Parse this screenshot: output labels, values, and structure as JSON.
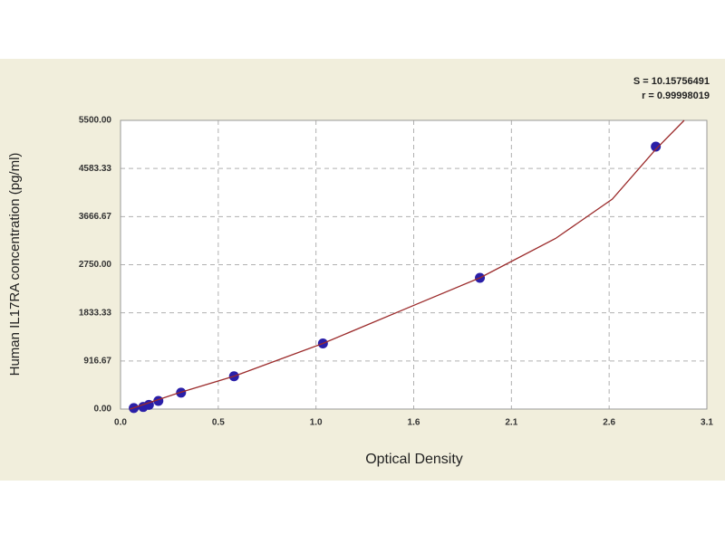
{
  "chart_data": {
    "type": "scatter",
    "x_label": "Optical Density",
    "y_label": "Human IL17RA concentration (pg/ml)",
    "annotations": [
      "S = 10.15756491",
      "r = 0.99998019"
    ],
    "xlim": [
      0,
      3.1
    ],
    "xticks": [
      {
        "value": 0,
        "label": "0.0"
      },
      {
        "value": 0.5167,
        "label": "0.5"
      },
      {
        "value": 1.0333,
        "label": "1.0"
      },
      {
        "value": 1.55,
        "label": "1.6"
      },
      {
        "value": 2.0667,
        "label": "2.1"
      },
      {
        "value": 2.5833,
        "label": "2.6"
      },
      {
        "value": 3.1,
        "label": "3.1"
      }
    ],
    "ylim": [
      0,
      5500
    ],
    "yticks": [
      {
        "value": 0,
        "label": "0.00"
      },
      916.67,
      1833.33,
      {
        "value": 2750,
        "label": "2750.00"
      },
      3666.67,
      4583.33,
      {
        "value": 5500,
        "label": "5500.00"
      }
    ],
    "grid": true,
    "series": [
      {
        "color": "#2a1fa8",
        "x": [
          0.07,
          0.12,
          0.15,
          0.2,
          0.32,
          0.6,
          1.07,
          1.9,
          2.83
        ],
        "values": [
          20,
          40,
          80,
          156,
          312,
          625,
          1250,
          2500,
          5000
        ]
      },
      {
        "color": "#9b2a2a",
        "line": true,
        "x": [
          0.05,
          0.3,
          0.6,
          1.07,
          1.5,
          1.9,
          2.3,
          2.6,
          2.83,
          2.98
        ],
        "values": [
          0,
          300,
          625,
          1250,
          1900,
          2500,
          3250,
          4000,
          4950,
          5500
        ]
      }
    ]
  }
}
